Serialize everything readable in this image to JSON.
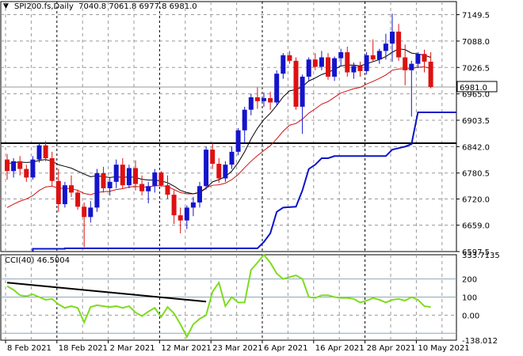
{
  "header": {
    "symbol": "SPI200.fs,Daily",
    "ohlc": "7040.8 7061.8 6977.8 6981.0",
    "title": "SPI200.fs,Daily  7040.8 7061.8 6977.8 6981.0",
    "arrow_icon": "triangle-down-icon"
  },
  "cci_header": {
    "label": "CCI(40) 46.5004"
  },
  "colors": {
    "bull": "#1414cc",
    "bear": "#dd1111",
    "sma": "#000000",
    "ema": "#cc1111",
    "step": "#0a14c8",
    "support": "#000000",
    "cci": "#7ddc1f",
    "cci_trend": "#000000",
    "current_price_box": "#ffffff"
  },
  "chart_data": [
    {
      "type": "candlestick",
      "title": "SPI200.fs,Daily",
      "ylim": [
        6597.5,
        7180.0
      ],
      "y_ticks": [
        "7149.5",
        "7088.0",
        "7026.5",
        "6965.0",
        "6903.5",
        "6842.0",
        "6780.5",
        "6720.0",
        "6659.0",
        "6597.5"
      ],
      "current_price": "6981.0",
      "x_labels": [
        "8 Feb 2021",
        "18 Feb 2021",
        "2 Mar 2021",
        "12 Mar 2021",
        "23 Mar 2021",
        "6 Apr 2021",
        "16 Apr 2021",
        "28 Apr 2021",
        "10 May 2021"
      ],
      "x_label_index": [
        0,
        8,
        16,
        24,
        32,
        40,
        48,
        56,
        64
      ],
      "date_separators_index": [
        8,
        24,
        40,
        56
      ],
      "horizontal_line": 6850,
      "grid": true,
      "candles": [
        [
          6812,
          6825,
          6765,
          6785
        ],
        [
          6785,
          6815,
          6770,
          6808
        ],
        [
          6808,
          6820,
          6775,
          6790
        ],
        [
          6790,
          6800,
          6760,
          6770
        ],
        [
          6770,
          6820,
          6765,
          6812
        ],
        [
          6812,
          6850,
          6805,
          6845
        ],
        [
          6845,
          6855,
          6808,
          6815
        ],
        [
          6815,
          6830,
          6750,
          6762
        ],
        [
          6762,
          6790,
          6690,
          6708
        ],
        [
          6708,
          6760,
          6700,
          6752
        ],
        [
          6752,
          6775,
          6725,
          6735
        ],
        [
          6735,
          6742,
          6695,
          6702
        ],
        [
          6702,
          6712,
          6608,
          6678
        ],
        [
          6678,
          6715,
          6665,
          6700
        ],
        [
          6700,
          6790,
          6690,
          6780
        ],
        [
          6780,
          6795,
          6735,
          6745
        ],
        [
          6745,
          6770,
          6728,
          6760
        ],
        [
          6760,
          6812,
          6745,
          6800
        ],
        [
          6800,
          6815,
          6745,
          6752
        ],
        [
          6752,
          6800,
          6745,
          6792
        ],
        [
          6792,
          6810,
          6740,
          6755
        ],
        [
          6755,
          6775,
          6728,
          6738
        ],
        [
          6738,
          6760,
          6710,
          6750
        ],
        [
          6750,
          6790,
          6735,
          6782
        ],
        [
          6782,
          6785,
          6748,
          6752
        ],
        [
          6752,
          6775,
          6720,
          6730
        ],
        [
          6730,
          6740,
          6662,
          6682
        ],
        [
          6682,
          6700,
          6640,
          6670
        ],
        [
          6670,
          6705,
          6650,
          6700
        ],
        [
          6700,
          6725,
          6680,
          6712
        ],
        [
          6712,
          6760,
          6700,
          6750
        ],
        [
          6750,
          6842,
          6742,
          6835
        ],
        [
          6835,
          6850,
          6790,
          6802
        ],
        [
          6802,
          6815,
          6758,
          6768
        ],
        [
          6768,
          6808,
          6760,
          6800
        ],
        [
          6800,
          6842,
          6790,
          6830
        ],
        [
          6830,
          6885,
          6822,
          6880
        ],
        [
          6880,
          6935,
          6850,
          6928
        ],
        [
          6928,
          6965,
          6915,
          6957
        ],
        [
          6957,
          6980,
          6930,
          6948
        ],
        [
          6948,
          6968,
          6935,
          6955
        ],
        [
          6955,
          6970,
          6928,
          6945
        ],
        [
          6945,
          7020,
          6938,
          7012
        ],
        [
          7012,
          7060,
          7000,
          7055
        ],
        [
          7055,
          7065,
          7035,
          7042
        ],
        [
          7042,
          7050,
          6928,
          6935
        ],
        [
          6935,
          7010,
          6872,
          7005
        ],
        [
          7005,
          7050,
          6995,
          7045
        ],
        [
          7045,
          7060,
          7020,
          7028
        ],
        [
          7028,
          7065,
          7020,
          7050
        ],
        [
          7050,
          7060,
          6998,
          7005
        ],
        [
          7005,
          7052,
          6995,
          7048
        ],
        [
          7048,
          7070,
          7030,
          7062
        ],
        [
          7062,
          7075,
          7005,
          7015
        ],
        [
          7015,
          7038,
          7000,
          7030
        ],
        [
          7030,
          7040,
          7005,
          7018
        ],
        [
          7018,
          7062,
          7010,
          7055
        ],
        [
          7055,
          7092,
          7040,
          7045
        ],
        [
          7045,
          7070,
          7035,
          7065
        ],
        [
          7065,
          7105,
          7045,
          7082
        ],
        [
          7082,
          7152,
          7040,
          7110
        ],
        [
          7110,
          7128,
          7042,
          7050
        ],
        [
          7050,
          7080,
          6985,
          7020
        ],
        [
          7020,
          7042,
          6912,
          7035
        ],
        [
          7035,
          7062,
          7025,
          7058
        ],
        [
          7058,
          7068,
          7015,
          7040
        ],
        [
          7040,
          7062,
          6978,
          6981
        ]
      ],
      "sma": [
        6802,
        6805,
        6806,
        6805,
        6806,
        6810,
        6812,
        6808,
        6800,
        6796,
        6792,
        6785,
        6778,
        6772,
        6774,
        6772,
        6770,
        6772,
        6770,
        6772,
        6770,
        6766,
        6764,
        6764,
        6762,
        6758,
        6750,
        6740,
        6735,
        6732,
        6735,
        6745,
        6760,
        6765,
        6772,
        6785,
        6805,
        6830,
        6860,
        6885,
        6905,
        6920,
        6938,
        6958,
        6972,
        6975,
        6982,
        6995,
        7002,
        7010,
        7015,
        7022,
        7030,
        7032,
        7032,
        7030,
        7035,
        7040,
        7045,
        7052,
        7062,
        7070,
        7068,
        7060,
        7058,
        7055,
        7050
      ],
      "ema": [
        6700,
        6708,
        6715,
        6720,
        6728,
        6740,
        6748,
        6750,
        6745,
        6745,
        6744,
        6740,
        6733,
        6730,
        6735,
        6737,
        6738,
        6742,
        6744,
        6748,
        6749,
        6748,
        6748,
        6751,
        6751,
        6749,
        6742,
        6735,
        6732,
        6732,
        6736,
        6746,
        6752,
        6753,
        6757,
        6765,
        6777,
        6793,
        6808,
        6821,
        6833,
        6844,
        6860,
        6878,
        6892,
        6896,
        6906,
        6920,
        6930,
        6941,
        6947,
        6957,
        6967,
        6972,
        6977,
        6980,
        6988,
        6994,
        7001,
        7009,
        7020,
        7023,
        7023,
        7024,
        7027,
        7028,
        7024
      ],
      "step": [
        [
          4,
          6598
        ],
        [
          4,
          6604
        ],
        [
          9,
          6604
        ],
        [
          9,
          6605
        ],
        [
          39,
          6605
        ],
        [
          40,
          6620
        ],
        [
          41,
          6640
        ],
        [
          42,
          6690
        ],
        [
          43,
          6700
        ],
        [
          45,
          6702
        ],
        [
          46,
          6740
        ],
        [
          47,
          6790
        ],
        [
          48,
          6800
        ],
        [
          49,
          6815
        ],
        [
          50,
          6815
        ],
        [
          51,
          6820
        ],
        [
          52,
          6820
        ],
        [
          59,
          6820
        ],
        [
          60,
          6835
        ],
        [
          62,
          6842
        ],
        [
          63,
          6848
        ],
        [
          64,
          6922
        ],
        [
          70,
          6922
        ]
      ]
    },
    {
      "type": "line",
      "title": "CCI(40) 46.5004",
      "ylim": [
        -138.012,
        333.7135
      ],
      "y_ticks": [
        "333.7135",
        "200",
        "100",
        "0.00",
        "-138.012"
      ],
      "levels": [
        200,
        100,
        -100
      ],
      "values": [
        160,
        140,
        110,
        105,
        115,
        100,
        85,
        90,
        60,
        40,
        50,
        40,
        -40,
        45,
        55,
        50,
        45,
        50,
        40,
        50,
        15,
        -5,
        20,
        40,
        -10,
        45,
        10,
        -50,
        -120,
        -50,
        -20,
        0,
        130,
        180,
        50,
        100,
        70,
        70,
        250,
        290,
        335,
        290,
        230,
        200,
        210,
        220,
        200,
        100,
        95,
        110,
        110,
        100,
        95,
        95,
        90,
        70,
        80,
        95,
        85,
        70,
        85,
        90,
        80,
        100,
        85,
        50,
        45
      ],
      "trend_line": [
        [
          0,
          180
        ],
        [
          31,
          75
        ]
      ]
    }
  ]
}
